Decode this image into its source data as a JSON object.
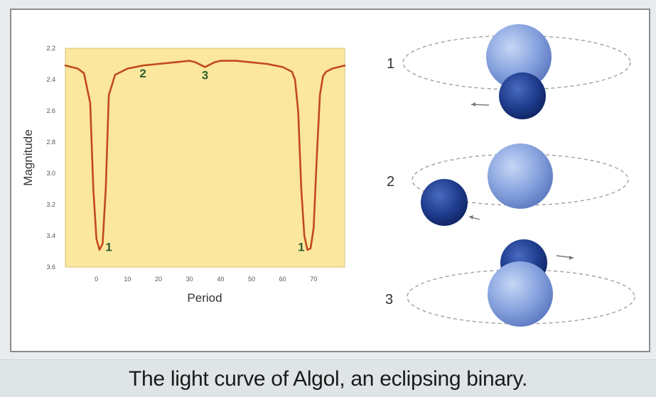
{
  "caption": "The light curve of Algol, an eclipsing binary.",
  "chart_data": {
    "type": "line",
    "title": "",
    "xlabel": "Period",
    "ylabel": "Magnitude",
    "xlim": [
      -10,
      80
    ],
    "ylim": [
      2.2,
      3.6
    ],
    "y_inverted": true,
    "xticks": [
      "0",
      "10",
      "20",
      "30",
      "40",
      "50",
      "60",
      "70"
    ],
    "yticks": [
      "2.2",
      "2.4",
      "2.6",
      "2.8",
      "3.0",
      "3.2",
      "3.4",
      "3.6"
    ],
    "grid": false,
    "background_color": "#fbe79e",
    "line_color": "#c24a1c",
    "series": [
      {
        "x": [
          -10,
          -6,
          -4,
          -2,
          -1,
          0,
          1,
          2,
          3,
          4,
          6,
          8,
          10,
          15,
          20,
          25,
          30,
          32,
          34,
          35,
          36,
          38,
          40,
          45,
          50,
          55,
          60,
          63,
          64,
          65,
          66,
          67,
          68,
          69,
          70,
          71,
          72,
          73,
          74,
          76,
          78,
          80
        ],
        "y": [
          2.31,
          2.33,
          2.36,
          2.55,
          3.1,
          3.42,
          3.49,
          3.45,
          3.1,
          2.5,
          2.37,
          2.35,
          2.33,
          2.31,
          2.3,
          2.29,
          2.28,
          2.29,
          2.31,
          2.32,
          2.31,
          2.29,
          2.28,
          2.28,
          2.29,
          2.3,
          2.32,
          2.35,
          2.4,
          2.6,
          3.1,
          3.4,
          3.49,
          3.48,
          3.35,
          2.9,
          2.5,
          2.38,
          2.35,
          2.33,
          2.32,
          2.31
        ]
      }
    ],
    "annotations": [
      {
        "text": "1",
        "x": 4,
        "y": 3.47
      },
      {
        "text": "2",
        "x": 15,
        "y": 2.36
      },
      {
        "text": "3",
        "x": 35,
        "y": 2.37
      },
      {
        "text": "1",
        "x": 66,
        "y": 3.47
      }
    ]
  },
  "diagram": {
    "rows": [
      {
        "label": "1"
      },
      {
        "label": "2"
      },
      {
        "label": "3"
      }
    ],
    "colors": {
      "large_star": "#8aa6e0",
      "small_star": "#1e3c8c",
      "orbit": "#a0a0a0"
    }
  }
}
